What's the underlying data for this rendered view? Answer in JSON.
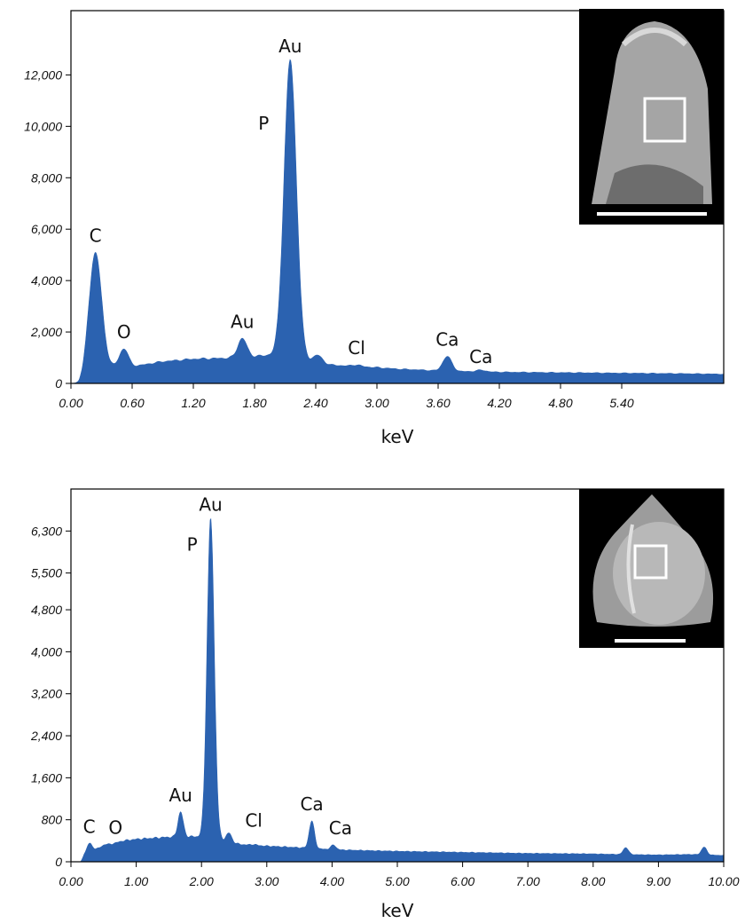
{
  "colors": {
    "spectrum": "#2b62b0",
    "axis": "#000000",
    "inset_bg": "#000000",
    "inset_marker": "#ffffff"
  },
  "chart_data": [
    {
      "type": "area",
      "xlabel": "keV",
      "xlim": [
        0,
        6.4
      ],
      "ylim": [
        0,
        14500
      ],
      "xticks": [
        0,
        0.6,
        1.2,
        1.8,
        2.4,
        3.0,
        3.6,
        4.2,
        4.8,
        5.4
      ],
      "xtick_labels": [
        "0.00",
        "0.60",
        "1.20",
        "1.80",
        "2.40",
        "3.00",
        "3.60",
        "4.20",
        "4.80",
        "5.40"
      ],
      "yticks": [
        0,
        2000,
        4000,
        6000,
        8000,
        10000,
        12000
      ],
      "ytick_labels": [
        "0",
        "2,000",
        "4,000",
        "6,000",
        "8,000",
        "10,000",
        "12,000"
      ],
      "baseline": [
        [
          0,
          0
        ],
        [
          0.08,
          0
        ],
        [
          0.12,
          200
        ],
        [
          0.16,
          500
        ],
        [
          0.3,
          600
        ],
        [
          0.4,
          650
        ],
        [
          0.6,
          650
        ],
        [
          0.7,
          720
        ],
        [
          0.9,
          850
        ],
        [
          1.2,
          950
        ],
        [
          1.5,
          980
        ],
        [
          1.8,
          1050
        ],
        [
          1.95,
          1100
        ],
        [
          2.3,
          880
        ],
        [
          2.55,
          720
        ],
        [
          2.7,
          680
        ],
        [
          3.0,
          620
        ],
        [
          3.2,
          560
        ],
        [
          3.4,
          530
        ],
        [
          3.55,
          500
        ],
        [
          3.8,
          470
        ],
        [
          4.2,
          440
        ],
        [
          4.8,
          420
        ],
        [
          5.4,
          400
        ],
        [
          6.0,
          380
        ],
        [
          6.4,
          360
        ]
      ],
      "peaks": [
        {
          "label": "C",
          "x": 0.24,
          "y": 5100
        },
        {
          "label": "O",
          "x": 0.52,
          "y": 1350
        },
        {
          "label": "Au",
          "x": 1.68,
          "y": 1750
        },
        {
          "label": "P",
          "x": 2.02,
          "y": 8500
        },
        {
          "label": "Au",
          "x": 2.15,
          "y": 12600
        },
        {
          "label": "",
          "x": 2.42,
          "y": 1100
        },
        {
          "label": "Cl",
          "x": 2.8,
          "y": 720
        },
        {
          "label": "Ca",
          "x": 3.69,
          "y": 1050
        },
        {
          "label": "Ca",
          "x": 4.02,
          "y": 520
        }
      ]
    },
    {
      "type": "area",
      "xlabel": "keV",
      "xlim": [
        0,
        10
      ],
      "ylim": [
        0,
        7100
      ],
      "xticks": [
        0,
        1,
        2,
        3,
        4,
        5,
        6,
        7,
        8,
        9,
        10
      ],
      "xtick_labels": [
        "0.00",
        "1.00",
        "2.00",
        "3.00",
        "4.00",
        "5.00",
        "6.00",
        "7.00",
        "8.00",
        "9.00",
        "10.00"
      ],
      "yticks": [
        0,
        800,
        1600,
        2400,
        3200,
        4000,
        4800,
        5500,
        6300
      ],
      "ytick_labels": [
        "0",
        "800",
        "1,600",
        "2,400",
        "3,200",
        "4,000",
        "4,800",
        "5,500",
        "6,300"
      ],
      "baseline": [
        [
          0,
          0
        ],
        [
          0.15,
          0
        ],
        [
          0.2,
          120
        ],
        [
          0.35,
          230
        ],
        [
          0.6,
          330
        ],
        [
          0.8,
          400
        ],
        [
          1.0,
          430
        ],
        [
          1.5,
          470
        ],
        [
          1.9,
          480
        ],
        [
          2.3,
          420
        ],
        [
          2.6,
          330
        ],
        [
          3.0,
          300
        ],
        [
          3.5,
          270
        ],
        [
          4.0,
          230
        ],
        [
          5.0,
          200
        ],
        [
          6.0,
          180
        ],
        [
          7.0,
          160
        ],
        [
          8.0,
          150
        ],
        [
          8.4,
          140
        ],
        [
          9.0,
          130
        ],
        [
          9.5,
          140
        ],
        [
          10.0,
          120
        ]
      ],
      "peaks": [
        {
          "label": "C",
          "x": 0.28,
          "y": 350
        },
        {
          "label": "O",
          "x": 0.52,
          "y": 330
        },
        {
          "label": "Au",
          "x": 1.68,
          "y": 950
        },
        {
          "label": "P",
          "x": 2.02,
          "y": 3900
        },
        {
          "label": "Au",
          "x": 2.14,
          "y": 6550
        },
        {
          "label": "",
          "x": 2.42,
          "y": 550
        },
        {
          "label": "Cl",
          "x": 2.8,
          "y": 330
        },
        {
          "label": "Ca",
          "x": 3.69,
          "y": 780
        },
        {
          "label": "Ca",
          "x": 4.02,
          "y": 320
        },
        {
          "label": "",
          "x": 8.5,
          "y": 270
        },
        {
          "label": "",
          "x": 9.7,
          "y": 280
        }
      ]
    }
  ]
}
